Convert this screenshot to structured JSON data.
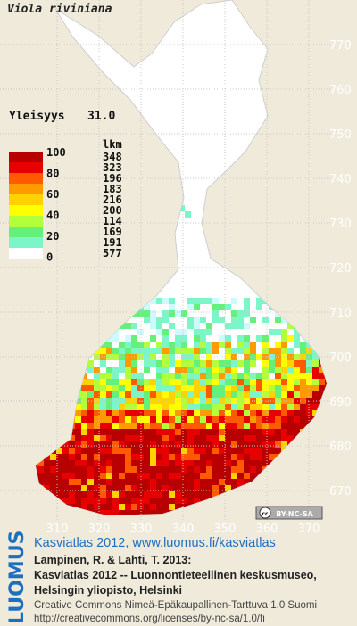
{
  "title": "Viola riviniana",
  "frequency": {
    "label": "Yleisyys",
    "value": "31.0"
  },
  "legend": {
    "unit": "lkm",
    "scale_labels": [
      100,
      80,
      60,
      40,
      20,
      0
    ],
    "counts": [
      348,
      323,
      196,
      183,
      216,
      200,
      114,
      169,
      191,
      577
    ],
    "colors": [
      "#b80000",
      "#e60000",
      "#ff5a00",
      "#ff9a00",
      "#ffd200",
      "#ffff00",
      "#b4ff3c",
      "#64f07a",
      "#7cf5c8",
      "#ccfaff",
      "#ffffff"
    ]
  },
  "grid": {
    "x_labels": [
      "310",
      "320",
      "330",
      "340",
      "350",
      "360",
      "370"
    ],
    "y_labels": [
      "770",
      "760",
      "750",
      "740",
      "730",
      "720",
      "710",
      "700",
      "690",
      "680",
      "670"
    ]
  },
  "badge": {
    "cc": "cc",
    "text": "BY-NC-SA"
  },
  "brand": "LUOMUS",
  "link": "Kasviatlas 2012, www.luomus.fi/kasviatlas",
  "citation": [
    "Lampinen, R. & Lahti, T. 2013:",
    "Kasviatlas 2012 -- Luonnontieteellinen keskusmuseo,",
    "Helsingin yliopisto, Helsinki"
  ],
  "license": [
    "Creative Commons Nimeä-Epäkaupallinen-Tarttuva 1.0 Suomi",
    "http://creativecommons.org/licenses/by-nc-sa/1.0/fi"
  ]
}
